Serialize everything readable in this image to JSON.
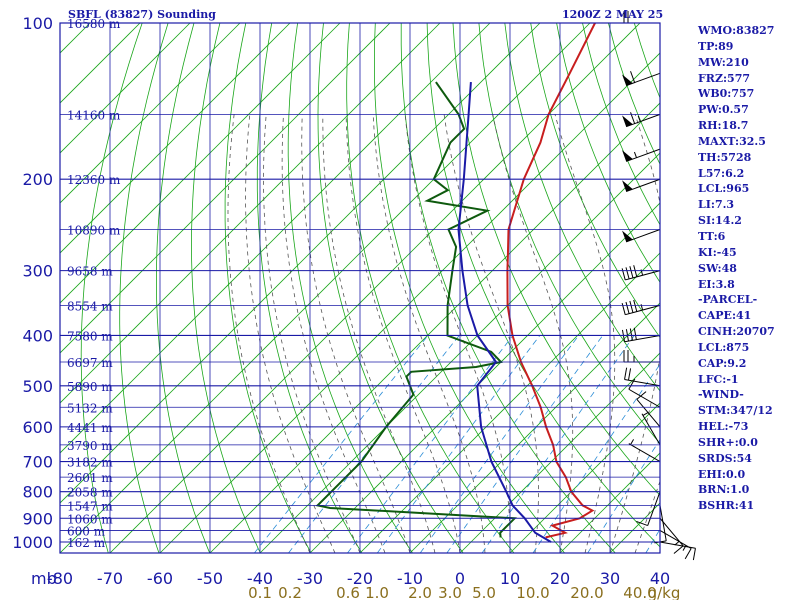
{
  "header": {
    "station": "SBFL (83827) Sounding",
    "time": "1200Z  2 MAY 25"
  },
  "stats": [
    "WMO:83827",
    "TP:89",
    "MW:210",
    "FRZ:577",
    "WB0:757",
    "PW:0.57",
    "RH:18.7",
    "MAXT:32.5",
    "TH:5728",
    "L57:6.2",
    "LCL:965",
    "LI:7.3",
    "SI:14.2",
    "TT:6",
    "KI:-45",
    "SW:48",
    "EI:3.8",
    "-PARCEL-",
    "CAPE:41",
    "CINH:20707",
    "LCL:875",
    "CAP:9.2",
    "LFC:-1",
    "-WIND-",
    "STM:347/12",
    "HEL:-73",
    "SHR+:0.0",
    "SRDS:54",
    "EHI:0.0",
    "BRN:1.0",
    "BSHR:41"
  ],
  "colors": {
    "isobar_grid": "#1a1aa6",
    "isotherm": "#1aa61a",
    "dry_adiabat": "#1aa61a",
    "moist_adiabat": "#555555",
    "mixing_ratio": "#2a8cd6",
    "temperature": "#c81e1e",
    "dewpoint": "#0e5a0e",
    "parcel": "#1a1aa6",
    "wind_barb": "#000000"
  },
  "chart_data": {
    "type": "skew-t log-p sounding",
    "pressure_axis_label": "mb",
    "pressure_levels": [
      100,
      200,
      300,
      400,
      500,
      600,
      700,
      800,
      900,
      1000
    ],
    "temperature_ticks": [
      -80,
      -70,
      -60,
      -50,
      -40,
      -30,
      -20,
      -10,
      0,
      10,
      20,
      30,
      40
    ],
    "mixing_ratio_labels": [
      "0.1",
      "0.2",
      "0.6",
      "1.0",
      "2.0",
      "3.0",
      "5.0",
      "10.0",
      "20.0",
      "40.0",
      "g/kg"
    ],
    "height_labels": [
      {
        "p": 100,
        "text": "16580 m"
      },
      {
        "p": 150,
        "text": "14160 m"
      },
      {
        "p": 200,
        "text": "12360 m"
      },
      {
        "p": 250,
        "text": "10890 m"
      },
      {
        "p": 300,
        "text": "9658 m"
      },
      {
        "p": 350,
        "text": "8554 m"
      },
      {
        "p": 400,
        "text": "7580 m"
      },
      {
        "p": 450,
        "text": "6697 m"
      },
      {
        "p": 500,
        "text": "5890 m"
      },
      {
        "p": 550,
        "text": "5132 m"
      },
      {
        "p": 600,
        "text": "4441 m"
      },
      {
        "p": 650,
        "text": "3790 m"
      },
      {
        "p": 700,
        "text": "3182 m"
      },
      {
        "p": 750,
        "text": "2601 m"
      },
      {
        "p": 800,
        "text": "2058 m"
      },
      {
        "p": 850,
        "text": "1547 m"
      },
      {
        "p": 900,
        "text": "1060 m"
      },
      {
        "p": 950,
        "text": "600 m"
      },
      {
        "p": 1000,
        "text": "162 m"
      }
    ],
    "series": [
      {
        "key": "temperature",
        "points": [
          [
            980,
            14
          ],
          [
            960,
            17
          ],
          [
            930,
            13
          ],
          [
            900,
            17
          ],
          [
            870,
            18
          ],
          [
            850,
            15
          ],
          [
            800,
            10
          ],
          [
            750,
            6
          ],
          [
            700,
            1
          ],
          [
            650,
            -3
          ],
          [
            600,
            -8
          ],
          [
            550,
            -13
          ],
          [
            500,
            -19
          ],
          [
            450,
            -26
          ],
          [
            400,
            -33
          ],
          [
            350,
            -40
          ],
          [
            300,
            -47
          ],
          [
            280,
            -50
          ],
          [
            250,
            -55
          ],
          [
            200,
            -62
          ],
          [
            170,
            -66
          ],
          [
            150,
            -70
          ],
          [
            125,
            -74
          ],
          [
            100,
            -79
          ]
        ]
      },
      {
        "key": "dewpoint",
        "points": [
          [
            980,
            5
          ],
          [
            960,
            4
          ],
          [
            930,
            4
          ],
          [
            900,
            4
          ],
          [
            880,
            -15
          ],
          [
            860,
            -35
          ],
          [
            850,
            -38
          ],
          [
            800,
            -38
          ],
          [
            700,
            -38
          ],
          [
            600,
            -40
          ],
          [
            520,
            -41
          ],
          [
            480,
            -46
          ],
          [
            470,
            -46
          ],
          [
            460,
            -34
          ],
          [
            450,
            -30
          ],
          [
            430,
            -34
          ],
          [
            400,
            -46
          ],
          [
            350,
            -52
          ],
          [
            300,
            -58
          ],
          [
            270,
            -62
          ],
          [
            250,
            -67
          ],
          [
            230,
            -63
          ],
          [
            220,
            -77
          ],
          [
            210,
            -75
          ],
          [
            200,
            -80
          ],
          [
            170,
            -84
          ],
          [
            160,
            -84
          ],
          [
            150,
            -88
          ],
          [
            130,
            -99
          ]
        ]
      },
      {
        "key": "parcel",
        "points": [
          [
            1000,
            16
          ],
          [
            960,
            11
          ],
          [
            900,
            6
          ],
          [
            850,
            1
          ],
          [
            800,
            -3
          ],
          [
            700,
            -12
          ],
          [
            600,
            -21
          ],
          [
            500,
            -30
          ],
          [
            450,
            -31
          ],
          [
            400,
            -40
          ],
          [
            350,
            -48
          ],
          [
            300,
            -56
          ],
          [
            250,
            -65
          ],
          [
            200,
            -74
          ],
          [
            150,
            -86
          ],
          [
            130,
            -92
          ]
        ]
      }
    ],
    "wind_barbs": [
      {
        "p": 100,
        "dir": 270,
        "kt": 20
      },
      {
        "p": 125,
        "dir": 250,
        "kt": 60
      },
      {
        "p": 150,
        "dir": 250,
        "kt": 65
      },
      {
        "p": 175,
        "dir": 250,
        "kt": 55
      },
      {
        "p": 200,
        "dir": 250,
        "kt": 50
      },
      {
        "p": 250,
        "dir": 250,
        "kt": 50
      },
      {
        "p": 300,
        "dir": 255,
        "kt": 45
      },
      {
        "p": 350,
        "dir": 255,
        "kt": 45
      },
      {
        "p": 400,
        "dir": 260,
        "kt": 40
      },
      {
        "p": 450,
        "dir": 270,
        "kt": 25
      },
      {
        "p": 500,
        "dir": 280,
        "kt": 20
      },
      {
        "p": 550,
        "dir": 300,
        "kt": 10
      },
      {
        "p": 600,
        "dir": 320,
        "kt": 10
      },
      {
        "p": 650,
        "dir": 330,
        "kt": 5
      },
      {
        "p": 700,
        "dir": 300,
        "kt": 5
      },
      {
        "p": 800,
        "dir": 200,
        "kt": 10
      },
      {
        "p": 850,
        "dir": 170,
        "kt": 10
      },
      {
        "p": 900,
        "dir": 140,
        "kt": 15
      },
      {
        "p": 950,
        "dir": 120,
        "kt": 15
      },
      {
        "p": 1000,
        "dir": 100,
        "kt": 10
      }
    ]
  }
}
